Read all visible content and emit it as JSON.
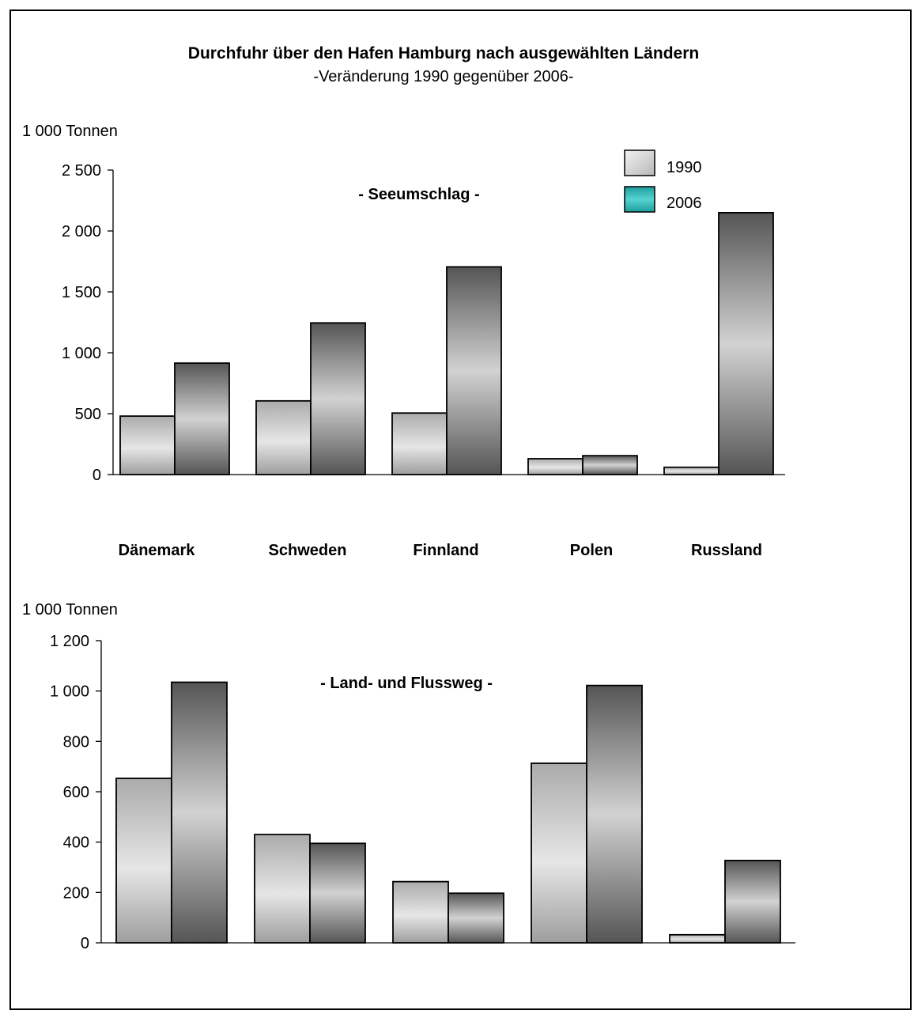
{
  "title": "Durchfuhr über den Hafen Hamburg nach ausgewählten Ländern",
  "subtitle": "-Veränderung 1990 gegenüber 2006-",
  "legend": [
    {
      "label": "1990",
      "color": "#d0d0d0"
    },
    {
      "label": "2006",
      "color": "#33bcbc"
    }
  ],
  "categories": [
    "Dänemark",
    "Schweden",
    "Finnland",
    "Polen",
    "Russland"
  ],
  "chart_data": [
    {
      "type": "bar",
      "title": "- Seeumschlag -",
      "ylabel": "1 000 Tonnen",
      "ylim": [
        0,
        2500
      ],
      "yticks": [
        0,
        500,
        1000,
        1500,
        2000,
        2500
      ],
      "ytick_labels": [
        "0",
        "500",
        "1 000",
        "1 500",
        "2 000",
        "2 500"
      ],
      "categories": [
        "Dänemark",
        "Schweden",
        "Finnland",
        "Polen",
        "Russland"
      ],
      "series": [
        {
          "name": "1990",
          "values": [
            480,
            605,
            505,
            130,
            60
          ]
        },
        {
          "name": "2006",
          "values": [
            915,
            1245,
            1705,
            155,
            2150
          ]
        }
      ]
    },
    {
      "type": "bar",
      "title": "- Land- und Flussweg -",
      "ylabel": "1 000 Tonnen",
      "ylim": [
        0,
        1200
      ],
      "yticks": [
        0,
        200,
        400,
        600,
        800,
        1000,
        1200
      ],
      "ytick_labels": [
        "0",
        "200",
        "400",
        "600",
        "800",
        "1 000",
        "1 200"
      ],
      "categories": [
        "Dänemark",
        "Schweden",
        "Finnland",
        "Polen",
        "Russland"
      ],
      "series": [
        {
          "name": "1990",
          "values": [
            653,
            430,
            243,
            713,
            32
          ]
        },
        {
          "name": "2006",
          "values": [
            1035,
            395,
            197,
            1022,
            327
          ]
        }
      ]
    }
  ]
}
